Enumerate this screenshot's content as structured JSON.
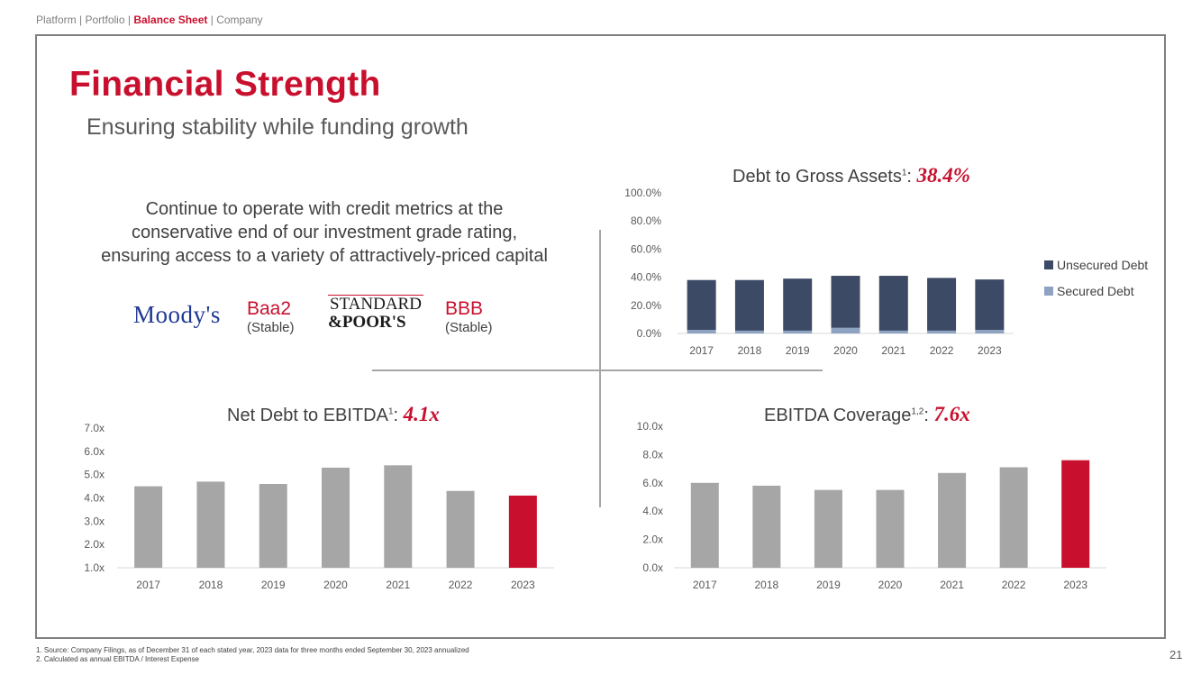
{
  "nav": {
    "item1": "Platform",
    "item2": "Portfolio",
    "item3": "Balance Sheet",
    "item4": "Company",
    "sep": "|"
  },
  "header": {
    "title": "Financial Strength",
    "subtitle": "Ensuring stability while funding growth"
  },
  "intro": {
    "line1": "Continue to operate with credit metrics at the",
    "line2": "conservative end of our investment grade rating,",
    "line3": "ensuring access to a variety of attractively-priced capital"
  },
  "ratings": {
    "moodys": {
      "logo": "Moody's",
      "rating": "Baa2",
      "outlook": "(Stable)"
    },
    "sp": {
      "logo_line1": "STANDARD",
      "logo_line2": "&POOR'S",
      "rating": "BBB",
      "outlook": "(Stable)"
    }
  },
  "colors": {
    "accent": "#c8102e",
    "unsecured": "#3d4a66",
    "secured": "#8ea3c2",
    "bar_gray": "#a6a6a6"
  },
  "chart_data": [
    {
      "id": "debt_to_gross_assets",
      "type": "bar",
      "stacked": true,
      "title": "Debt to Gross Assets",
      "title_sup": "1",
      "headline_value": "38.4%",
      "categories": [
        "2017",
        "2018",
        "2019",
        "2020",
        "2021",
        "2022",
        "2023"
      ],
      "series": [
        {
          "name": "Secured Debt",
          "values": [
            2.5,
            2.0,
            2.0,
            4.0,
            2.0,
            2.0,
            2.5
          ]
        },
        {
          "name": "Unsecured Debt",
          "values": [
            35.5,
            36.0,
            37.0,
            37.0,
            39.0,
            37.5,
            35.9
          ]
        }
      ],
      "ylim": [
        0,
        100
      ],
      "yticks": [
        "0.0%",
        "20.0%",
        "40.0%",
        "60.0%",
        "80.0%",
        "100.0%"
      ],
      "legend": [
        "Unsecured Debt",
        "Secured Debt"
      ],
      "legend_position": "right"
    },
    {
      "id": "net_debt_to_ebitda",
      "type": "bar",
      "title": "Net Debt to EBITDA",
      "title_sup": "1",
      "headline_value": "4.1x",
      "categories": [
        "2017",
        "2018",
        "2019",
        "2020",
        "2021",
        "2022",
        "2023"
      ],
      "values": [
        4.5,
        4.7,
        4.6,
        5.3,
        5.4,
        4.3,
        4.1
      ],
      "highlight_last": true,
      "ylim": [
        1,
        7
      ],
      "yticks": [
        "1.0x",
        "2.0x",
        "3.0x",
        "4.0x",
        "5.0x",
        "6.0x",
        "7.0x"
      ]
    },
    {
      "id": "ebitda_coverage",
      "type": "bar",
      "title": "EBITDA Coverage",
      "title_sup": "1,2",
      "headline_value": "7.6x",
      "categories": [
        "2017",
        "2018",
        "2019",
        "2020",
        "2021",
        "2022",
        "2023"
      ],
      "values": [
        6.0,
        5.8,
        5.5,
        5.5,
        6.7,
        7.1,
        7.6
      ],
      "highlight_last": true,
      "ylim": [
        0,
        10
      ],
      "yticks": [
        "0.0x",
        "2.0x",
        "4.0x",
        "6.0x",
        "8.0x",
        "10.0x"
      ]
    }
  ],
  "footnotes": [
    "1.  Source: Company Filings, as of December 31 of each stated year, 2023 data for three months ended September 30, 2023 annualized",
    "2.  Calculated as annual EBITDA / Interest Expense"
  ],
  "page_number": "21"
}
